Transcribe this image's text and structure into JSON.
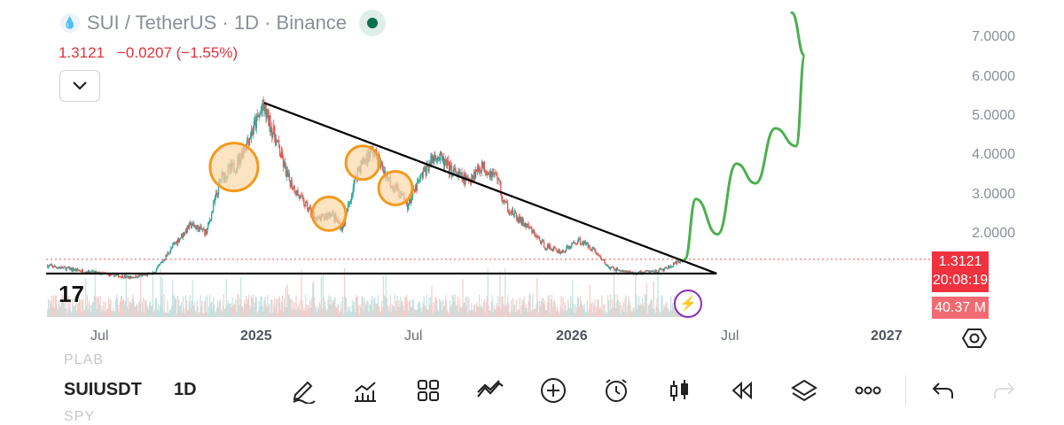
{
  "header": {
    "title": "SUI / TetherUS · 1D · Binance",
    "last_price": "1.3121",
    "change": "−0.0207 (−1.55%)"
  },
  "price_axis": {
    "labels": [
      "7.0000",
      "6.0000",
      "5.0000",
      "4.0000",
      "3.0000",
      "2.0000"
    ],
    "current_price_tag": "1.3121",
    "countdown": "20:08:19",
    "volume_tag": "40.37 M"
  },
  "time_axis": {
    "labels": [
      "Jul",
      "2025",
      "Jul",
      "2026",
      "Jul",
      "2027"
    ]
  },
  "toolbar": {
    "ghost_above": "PLAB",
    "ghost_below": "SPY",
    "symbol": "SUIUSDT",
    "timeframe": "1D",
    "buttons": [
      "pencil-icon",
      "indicators-icon",
      "grid-icon",
      "compare-icon",
      "plus-icon",
      "alarm-icon",
      "candles-icon",
      "replay-icon",
      "layers-icon",
      "more-icon",
      "undo-icon",
      "redo-icon"
    ]
  },
  "colors": {
    "bull": "#26a69a",
    "bear": "#ef5350",
    "projection": "#4caf50",
    "highlight_fill": "#fbd7a8",
    "highlight_stroke": "#f39a1e",
    "price_tag": "#f0313e"
  },
  "chart_data": {
    "type": "candlestick",
    "symbol": "SUIUSDT",
    "interval": "1D",
    "y_range": [
      1.0,
      7.5
    ],
    "path_points": [
      [
        "2024-05-01",
        1.15
      ],
      [
        "2024-06-15",
        1.0
      ],
      [
        "2024-08-05",
        0.85
      ],
      [
        "2024-09-01",
        0.95
      ],
      [
        "2024-09-25",
        1.7
      ],
      [
        "2024-10-14",
        2.2
      ],
      [
        "2024-11-01",
        2.0
      ],
      [
        "2024-11-18",
        3.4
      ],
      [
        "2024-12-05",
        3.7
      ],
      [
        "2024-12-20",
        4.4
      ],
      [
        "2025-01-06",
        5.2
      ],
      [
        "2025-01-20",
        4.4
      ],
      [
        "2025-02-03",
        3.4
      ],
      [
        "2025-02-20",
        2.8
      ],
      [
        "2025-03-10",
        2.3
      ],
      [
        "2025-03-25",
        2.5
      ],
      [
        "2025-04-08",
        2.1
      ],
      [
        "2025-04-25",
        3.6
      ],
      [
        "2025-05-12",
        4.1
      ],
      [
        "2025-05-30",
        3.4
      ],
      [
        "2025-06-22",
        2.7
      ],
      [
        "2025-07-10",
        3.5
      ],
      [
        "2025-07-25",
        4.0
      ],
      [
        "2025-08-10",
        3.6
      ],
      [
        "2025-08-30",
        3.3
      ],
      [
        "2025-09-15",
        3.7
      ],
      [
        "2025-10-05",
        3.4
      ],
      [
        "2025-10-10",
        2.8
      ],
      [
        "2025-10-25",
        2.4
      ],
      [
        "2025-11-10",
        2.1
      ],
      [
        "2025-11-28",
        1.65
      ],
      [
        "2025-12-18",
        1.5
      ],
      [
        "2026-01-06",
        1.8
      ],
      [
        "2026-01-22",
        1.6
      ],
      [
        "2026-02-10",
        1.1
      ],
      [
        "2026-03-10",
        0.95
      ],
      [
        "2026-04-15",
        1.05
      ],
      [
        "2026-05-09",
        1.3121
      ]
    ],
    "drawings": {
      "descending_trendline": [
        [
          "2025-01-07",
          5.3
        ],
        [
          "2026-06-15",
          0.95
        ]
      ],
      "support_line": [
        [
          "2024-05-01",
          0.95
        ],
        [
          "2026-06-15",
          0.95
        ]
      ],
      "price_line": 1.3121,
      "highlight_circles": [
        "2024-12-03",
        "2025-03-23",
        "2025-05-01",
        "2025-06-08"
      ],
      "projection_path": [
        [
          "2026-05-09",
          1.31
        ],
        [
          "2026-05-22",
          2.85
        ],
        [
          "2026-06-16",
          1.95
        ],
        [
          "2026-07-08",
          3.75
        ],
        [
          "2026-07-30",
          3.25
        ],
        [
          "2026-08-22",
          4.65
        ],
        [
          "2026-09-15",
          4.2
        ],
        [
          "2026-09-25",
          6.5
        ],
        [
          "2026-09-10",
          7.6
        ]
      ]
    }
  }
}
